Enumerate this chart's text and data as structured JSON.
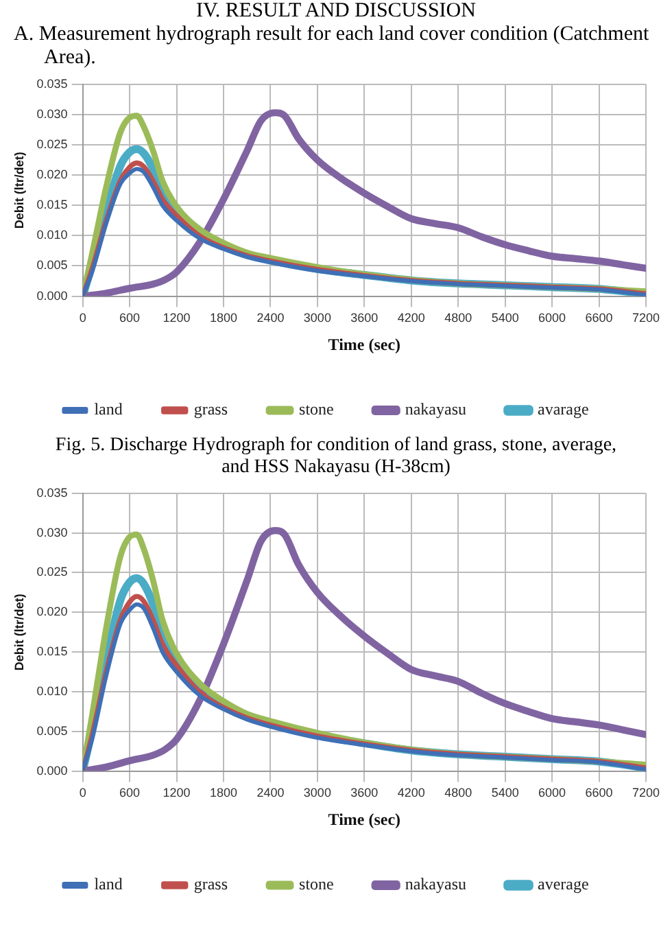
{
  "chart_data": [
    {
      "type": "line",
      "title": "IV.  RESULT AND DISCUSSION",
      "subtitle": "A.   Measurement hydrograph result for each land cover condition (Catchment Area).",
      "annotations": [
        "Fig. 5. Discharge Hydrograph for condition of land grass, stone, average, and HSS Nakayasu (H-38cm)"
      ],
      "xlabel": "Time (sec)",
      "ylabel": "Debit (ltr/det)",
      "x": [
        0,
        120,
        300,
        480,
        600,
        690,
        780,
        900,
        1020,
        1200,
        1500,
        1800,
        2100,
        2400,
        3000,
        3600,
        4200,
        4800,
        5400,
        6000,
        6600,
        7200
      ],
      "series": [
        {
          "name": "land",
          "color": "#3f6fb5",
          "values": [
            0,
            0.004,
            0.012,
            0.0185,
            0.0203,
            0.021,
            0.0205,
            0.018,
            0.015,
            0.0125,
            0.0095,
            0.0078,
            0.0065,
            0.0056,
            0.0042,
            0.0033,
            0.0025,
            0.002,
            0.0017,
            0.0014,
            0.0011,
            0.0002
          ]
        },
        {
          "name": "grass",
          "color": "#c0504d",
          "values": [
            0,
            0.0045,
            0.0125,
            0.019,
            0.0213,
            0.022,
            0.0214,
            0.019,
            0.016,
            0.0133,
            0.0099,
            0.008,
            0.0067,
            0.0058,
            0.0044,
            0.0034,
            0.0026,
            0.0021,
            0.0018,
            0.0015,
            0.0012,
            0.0004
          ]
        },
        {
          "name": "stone",
          "color": "#9bbb59",
          "values": [
            0,
            0.007,
            0.018,
            0.027,
            0.0295,
            0.0298,
            0.028,
            0.024,
            0.019,
            0.0148,
            0.011,
            0.0088,
            0.0072,
            0.0063,
            0.0048,
            0.0036,
            0.0027,
            0.0021,
            0.0018,
            0.0015,
            0.0012,
            0.0008
          ]
        },
        {
          "name": "nakayasu",
          "color": "#8064a2",
          "x": [
            0,
            300,
            600,
            900,
            1050,
            1200,
            1500,
            1800,
            2100,
            2280,
            2460,
            2580,
            2760,
            3000,
            3300,
            3600,
            3900,
            4200,
            4500,
            4800,
            5100,
            5400,
            5700,
            6000,
            6300,
            6600,
            6900,
            7200
          ],
          "values": [
            0,
            0.0005,
            0.0013,
            0.002,
            0.0027,
            0.004,
            0.009,
            0.016,
            0.024,
            0.029,
            0.0303,
            0.0298,
            0.026,
            0.0225,
            0.0195,
            0.017,
            0.0148,
            0.0128,
            0.012,
            0.0113,
            0.0098,
            0.0085,
            0.0075,
            0.0066,
            0.0062,
            0.0058,
            0.0052,
            0.0046
          ]
        },
        {
          "name": "avarage",
          "color": "#4bacc6",
          "values": [
            0,
            0.0052,
            0.014,
            0.0215,
            0.0238,
            0.0243,
            0.0236,
            0.021,
            0.017,
            0.0138,
            0.0102,
            0.0082,
            0.0068,
            0.0059,
            0.0045,
            0.0035,
            0.0026,
            0.0021,
            0.0018,
            0.0015,
            0.0012,
            0.0004
          ]
        }
      ],
      "xlim": [
        0,
        7200
      ],
      "xticks": [
        0,
        600,
        1200,
        1800,
        2400,
        3000,
        3600,
        4200,
        4800,
        5400,
        6000,
        6600,
        7200
      ],
      "ylim": [
        0,
        0.035
      ],
      "yticks": [
        {
          "value": 0,
          "label": "0.000"
        },
        {
          "value": 0.005,
          "label": "0.005"
        },
        {
          "value": 0.01,
          "label": "0.010"
        },
        {
          "value": 0.015,
          "label": "0.015"
        },
        {
          "value": 0.02,
          "label": "0.020"
        },
        {
          "value": 0.025,
          "label": "0.025"
        },
        {
          "value": 0.03,
          "label": "0.030"
        },
        {
          "value": 0.035,
          "label": "0.035"
        }
      ],
      "grid": true,
      "legend": "bottom",
      "marker": "none",
      "line_style": "solid"
    },
    {
      "type": "line",
      "xlabel": "Time (sec)",
      "ylabel": "Debit (ltr/det)",
      "x": [
        0,
        120,
        300,
        480,
        600,
        690,
        780,
        900,
        1020,
        1200,
        1500,
        1800,
        2100,
        2400,
        3000,
        3600,
        4200,
        4800,
        5400,
        6000,
        6600,
        7200
      ],
      "series": [
        {
          "name": "land",
          "color": "#3f6fb5",
          "values": [
            0,
            0.004,
            0.012,
            0.0185,
            0.0203,
            0.021,
            0.0205,
            0.018,
            0.015,
            0.0125,
            0.0095,
            0.0078,
            0.0065,
            0.0056,
            0.0042,
            0.0033,
            0.0025,
            0.002,
            0.0017,
            0.0014,
            0.0011,
            0.0002
          ]
        },
        {
          "name": "grass",
          "color": "#c0504d",
          "values": [
            0,
            0.0045,
            0.0125,
            0.019,
            0.0213,
            0.022,
            0.0214,
            0.019,
            0.016,
            0.0133,
            0.0099,
            0.008,
            0.0067,
            0.0058,
            0.0044,
            0.0034,
            0.0026,
            0.0021,
            0.0018,
            0.0015,
            0.0012,
            0.0004
          ]
        },
        {
          "name": "stone",
          "color": "#9bbb59",
          "values": [
            0,
            0.007,
            0.018,
            0.027,
            0.0295,
            0.0298,
            0.028,
            0.024,
            0.019,
            0.0148,
            0.011,
            0.0088,
            0.0072,
            0.0063,
            0.0048,
            0.0036,
            0.0027,
            0.0021,
            0.0018,
            0.0015,
            0.0012,
            0.0008
          ]
        },
        {
          "name": "nakayasu",
          "color": "#8064a2",
          "x": [
            0,
            300,
            600,
            900,
            1050,
            1200,
            1500,
            1800,
            2100,
            2280,
            2460,
            2580,
            2760,
            3000,
            3300,
            3600,
            3900,
            4200,
            4500,
            4800,
            5100,
            5400,
            5700,
            6000,
            6300,
            6600,
            6900,
            7200
          ],
          "values": [
            0,
            0.0005,
            0.0013,
            0.002,
            0.0027,
            0.004,
            0.009,
            0.016,
            0.024,
            0.029,
            0.0303,
            0.0298,
            0.026,
            0.0225,
            0.0195,
            0.017,
            0.0148,
            0.0128,
            0.012,
            0.0113,
            0.0098,
            0.0085,
            0.0075,
            0.0066,
            0.0062,
            0.0058,
            0.0052,
            0.0046
          ]
        },
        {
          "name": "average",
          "color": "#4bacc6",
          "values": [
            0,
            0.0052,
            0.014,
            0.0215,
            0.0238,
            0.0243,
            0.0236,
            0.021,
            0.017,
            0.0138,
            0.0102,
            0.0082,
            0.0068,
            0.0059,
            0.0045,
            0.0035,
            0.0026,
            0.0021,
            0.0018,
            0.0015,
            0.0012,
            0.0004
          ]
        }
      ],
      "xlim": [
        0,
        7200
      ],
      "xticks": [
        0,
        600,
        1200,
        1800,
        2400,
        3000,
        3600,
        4200,
        4800,
        5400,
        6000,
        6600,
        7200
      ],
      "ylim": [
        0,
        0.035
      ],
      "yticks": [
        {
          "value": 0,
          "label": "0.000"
        },
        {
          "value": 0.005,
          "label": "0.005"
        },
        {
          "value": 0.01,
          "label": "0.010"
        },
        {
          "value": 0.015,
          "label": "0.015"
        },
        {
          "value": 0.02,
          "label": "0.020"
        },
        {
          "value": 0.025,
          "label": "0.025"
        },
        {
          "value": 0.03,
          "label": "0.030"
        },
        {
          "value": 0.035,
          "label": "0.035"
        }
      ],
      "grid": true,
      "legend": "bottom",
      "marker": "none",
      "line_style": "solid"
    }
  ]
}
